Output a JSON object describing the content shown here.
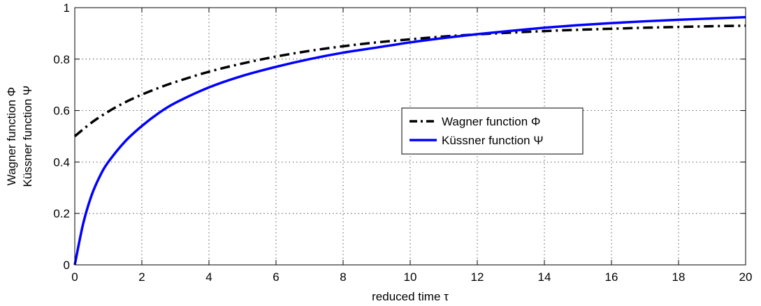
{
  "chart_data": {
    "type": "line",
    "xlabel": "reduced time τ",
    "ylabel": [
      "Wagner function Φ",
      "Küssner function Ψ"
    ],
    "xlim": [
      0,
      20
    ],
    "ylim": [
      0,
      1
    ],
    "xticks": [
      0,
      2,
      4,
      6,
      8,
      10,
      12,
      14,
      16,
      18,
      20
    ],
    "yticks": [
      0,
      0.2,
      0.4,
      0.6,
      0.8,
      1
    ],
    "xtick_labels": [
      "0",
      "2",
      "4",
      "6",
      "8",
      "10",
      "12",
      "14",
      "16",
      "18",
      "20"
    ],
    "ytick_labels": [
      "0",
      "0.2",
      "0.4",
      "0.6",
      "0.8",
      "1"
    ],
    "grid": true,
    "legend_position": "center-right",
    "series": [
      {
        "name": "Wagner function Φ",
        "color": "#000000",
        "style": "dash-dot",
        "x": [
          0,
          0.5,
          1,
          1.5,
          2,
          2.5,
          3,
          4,
          5,
          6,
          7,
          8,
          9,
          10,
          11,
          12,
          13,
          14,
          15,
          16,
          17,
          18,
          19,
          20
        ],
        "y": [
          0.5,
          0.553,
          0.596,
          0.632,
          0.662,
          0.688,
          0.711,
          0.751,
          0.783,
          0.81,
          0.832,
          0.85,
          0.865,
          0.877,
          0.888,
          0.896,
          0.903,
          0.909,
          0.914,
          0.918,
          0.922,
          0.925,
          0.928,
          0.93
        ]
      },
      {
        "name": "Küssner function Ψ",
        "color": "#0000ff",
        "style": "solid",
        "x": [
          0,
          0.25,
          0.5,
          0.75,
          1,
          1.5,
          2,
          2.5,
          3,
          4,
          5,
          6,
          7,
          8,
          9,
          10,
          11,
          12,
          13,
          14,
          15,
          16,
          17,
          18,
          19,
          20
        ],
        "y": [
          0,
          0.16,
          0.27,
          0.345,
          0.4,
          0.48,
          0.54,
          0.59,
          0.63,
          0.69,
          0.735,
          0.77,
          0.8,
          0.825,
          0.845,
          0.865,
          0.882,
          0.897,
          0.91,
          0.922,
          0.932,
          0.94,
          0.947,
          0.953,
          0.958,
          0.963
        ]
      }
    ]
  }
}
